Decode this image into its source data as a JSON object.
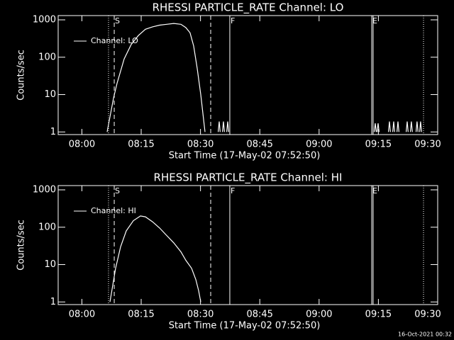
{
  "chart_data": [
    {
      "type": "line",
      "title": "RHESSI PARTICLE_RATE Channel: LO",
      "xlabel": "Start Time (17-May-02 07:52:50)",
      "ylabel": "Counts/sec",
      "ylog": true,
      "ylim": [
        0.85,
        1300
      ],
      "yticks": [
        1,
        10,
        100,
        1000
      ],
      "xlim": [
        "07:54:00",
        "09:30:00"
      ],
      "xticks": [
        "08:00",
        "08:15",
        "08:30",
        "08:45",
        "09:00",
        "09:15",
        "09:30"
      ],
      "legend": "upper left",
      "x": [
        "08:06:23",
        "08:08:00",
        "08:08:54",
        "08:10:41",
        "08:12:29",
        "08:14:17",
        "08:16:04",
        "08:17:52",
        "08:19:40",
        "08:21:27",
        "08:23:15",
        "08:25:03",
        "08:26:18",
        "08:27:22",
        "08:28:16",
        "08:29:10",
        "08:30:04",
        "08:31:09",
        "08:33:00",
        "08:34:29",
        "08:34:44",
        "08:34:59",
        "08:35:16",
        "08:35:34",
        "08:35:49",
        "08:36:04",
        "08:36:21",
        "08:36:38",
        "08:36:53",
        "08:37:08",
        "08:50:00",
        "09:13:58",
        "09:14:13",
        "09:14:28",
        "09:14:35",
        "09:14:41",
        "09:14:56",
        "09:15:11",
        "09:16:30",
        "09:17:33",
        "09:17:48",
        "09:18:03",
        "09:18:20",
        "09:18:37",
        "09:18:52",
        "09:19:07",
        "09:19:25",
        "09:19:42",
        "09:19:57",
        "09:20:12",
        "09:21:00",
        "09:22:02",
        "09:22:17",
        "09:22:32",
        "09:22:50",
        "09:23:06",
        "09:23:21",
        "09:23:36",
        "09:24:00",
        "09:24:32",
        "09:24:47",
        "09:25:02",
        "09:25:15",
        "09:25:26",
        "09:25:41",
        "09:25:56"
      ],
      "series": [
        {
          "name": "Channel: LO",
          "color": "#ffffff",
          "values": [
            1,
            8,
            20,
            90,
            220,
            380,
            560,
            650,
            720,
            760,
            800,
            760,
            620,
            450,
            200,
            50,
            10,
            1,
            null,
            1,
            1.9,
            1,
            null,
            1,
            1.9,
            1,
            null,
            1,
            1.9,
            1,
            null,
            1,
            1.7,
            1,
            null,
            1,
            1.7,
            1,
            null,
            1,
            1.9,
            1,
            null,
            1,
            1.9,
            1,
            null,
            1,
            1.9,
            1,
            null,
            1,
            1.9,
            1,
            null,
            1,
            1.9,
            1,
            null,
            1,
            1.9,
            1,
            null,
            1,
            1.9,
            1
          ]
        }
      ],
      "markers": [
        {
          "x": "08:06:44",
          "style": "dotted"
        },
        {
          "x": "08:08:11",
          "style": "dashed",
          "label": "S"
        },
        {
          "x": "08:32:35",
          "style": "dashed"
        },
        {
          "x": "08:37:25",
          "style": "solid",
          "label": "F"
        },
        {
          "x": "09:13:19",
          "style": "solid",
          "label": "E"
        },
        {
          "x": "09:13:40",
          "style": "solid"
        },
        {
          "x": "09:26:25",
          "style": "dotted"
        }
      ]
    },
    {
      "type": "line",
      "title": "RHESSI PARTICLE_RATE Channel: HI",
      "xlabel": "Start Time (17-May-02 07:52:50)",
      "ylabel": "Counts/sec",
      "ylog": true,
      "ylim": [
        0.85,
        1300
      ],
      "yticks": [
        1,
        10,
        100,
        1000
      ],
      "xlim": [
        "07:54:00",
        "09:30:00"
      ],
      "xticks": [
        "08:00",
        "08:15",
        "08:30",
        "08:45",
        "09:00",
        "09:15",
        "09:30"
      ],
      "legend": "upper left",
      "x": [
        "08:07:06",
        "08:08:32",
        "08:09:47",
        "08:11:14",
        "08:13:01",
        "08:14:49",
        "08:16:04",
        "08:17:52",
        "08:19:40",
        "08:21:27",
        "08:23:15",
        "08:25:03",
        "08:26:18",
        "08:27:44",
        "08:28:49",
        "08:29:32",
        "08:30:04"
      ],
      "series": [
        {
          "name": "Channel: HI",
          "color": "#ffffff",
          "values": [
            1,
            8,
            30,
            80,
            150,
            200,
            190,
            140,
            95,
            60,
            38,
            22,
            13,
            8,
            4,
            2,
            1
          ]
        }
      ],
      "markers": [
        {
          "x": "08:06:44",
          "style": "dotted"
        },
        {
          "x": "08:08:11",
          "style": "dashed",
          "label": "S"
        },
        {
          "x": "08:32:35",
          "style": "dashed"
        },
        {
          "x": "08:37:25",
          "style": "solid",
          "label": "F"
        },
        {
          "x": "09:13:19",
          "style": "solid",
          "label": "E"
        },
        {
          "x": "09:13:40",
          "style": "solid"
        },
        {
          "x": "09:26:25",
          "style": "dotted"
        }
      ]
    }
  ],
  "timestamp": "16-Oct-2021 00:32"
}
